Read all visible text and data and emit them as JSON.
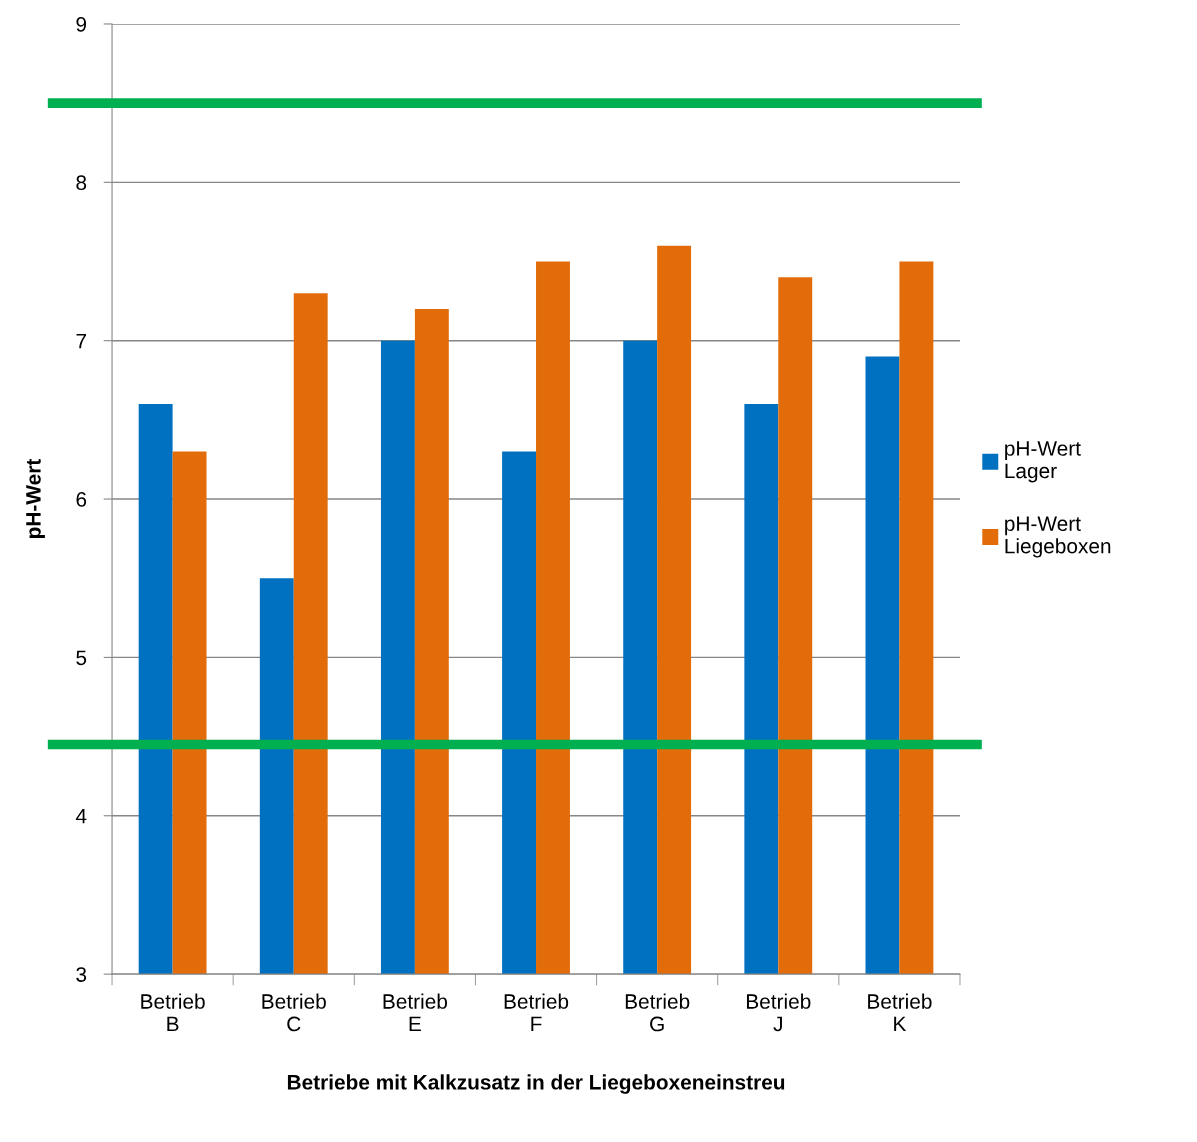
{
  "chart_data": {
    "type": "bar",
    "xlabel": "Betriebe mit Kalkzusatz in der Liegeboxeneinstreu",
    "ylabel": "pH-Wert",
    "categories": [
      "Betrieb B",
      "Betrieb C",
      "Betrieb E",
      "Betrieb F",
      "Betrieb G",
      "Betrieb J",
      "Betrieb K"
    ],
    "series": [
      {
        "name": "pH-Wert Lager",
        "color": "#0070c0",
        "values": [
          6.6,
          5.5,
          7.0,
          6.3,
          7.0,
          6.6,
          6.9
        ]
      },
      {
        "name": "pH-Wert Liegeboxen",
        "color": "#e36c0a",
        "values": [
          6.3,
          7.3,
          7.2,
          7.5,
          7.6,
          7.4,
          7.5
        ]
      }
    ],
    "ylim": [
      3,
      9
    ],
    "yticks": [
      3,
      4,
      5,
      6,
      7,
      8,
      9
    ],
    "grid": "y",
    "legend": "right",
    "ref_lines": [
      {
        "axis": "y",
        "value": 8.5,
        "color": "#00b050"
      },
      {
        "axis": "y",
        "value": 4.45,
        "color": "#00b050"
      }
    ]
  }
}
